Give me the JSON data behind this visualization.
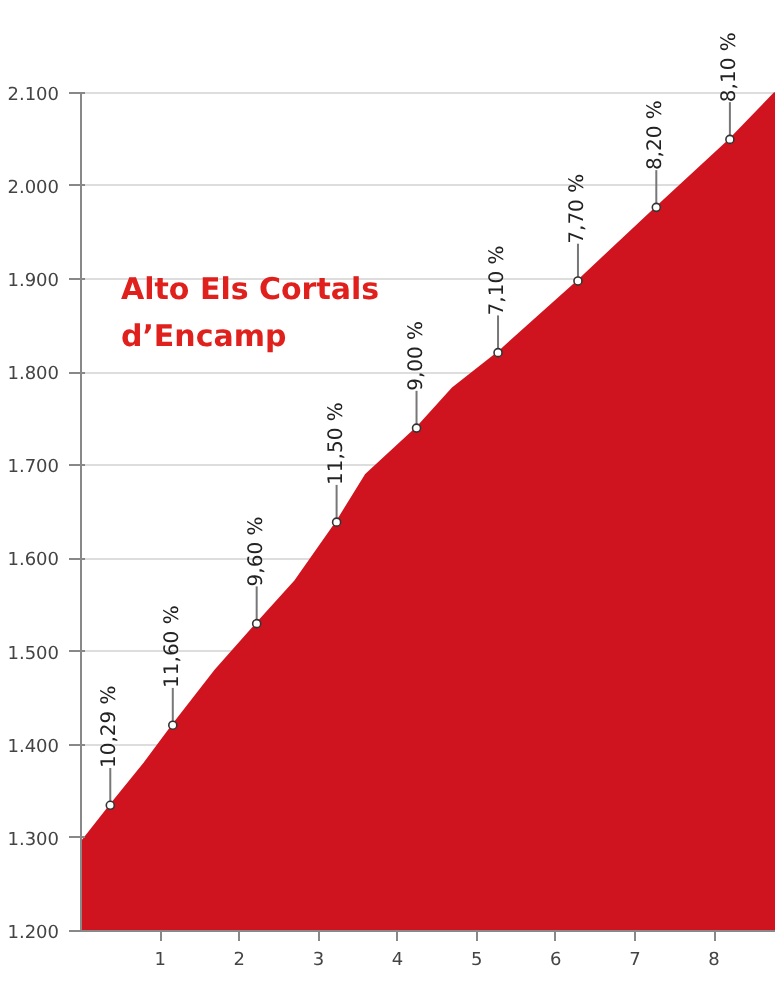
{
  "chart_data": {
    "type": "area",
    "title": "Alto Els Cortals d’Encamp",
    "x": [
      0,
      0.37,
      0.8,
      1.16,
      1.7,
      2.22,
      2.7,
      3.23,
      3.6,
      4.24,
      4.7,
      5.27,
      6.28,
      7.27,
      8.2,
      8.77
    ],
    "series": [
      {
        "color": "#d0141f",
        "values": [
          1295,
          1335,
          1380,
          1421,
          1480,
          1530,
          1575,
          1639,
          1690,
          1740,
          1783,
          1821,
          1898,
          1977,
          2050,
          2100
        ]
      },
      {
        "type": "scatter",
        "color": "#ffffff",
        "marker": "circle",
        "x": [
          0.37,
          1.16,
          2.22,
          3.23,
          4.24,
          5.27,
          6.28,
          7.27,
          8.2
        ],
        "values": [
          1335,
          1421,
          1530,
          1639,
          1740,
          1821,
          1898,
          1977,
          2050
        ]
      }
    ],
    "xlim": [
      0,
      8.77
    ],
    "ylim": [
      1200,
      2100
    ],
    "xticks": [
      1,
      2,
      3,
      4,
      5,
      6,
      7,
      8
    ],
    "yticks": [
      {
        "value": 1200,
        "label": "1.200"
      },
      {
        "value": 1300,
        "label": "1.300"
      },
      {
        "value": 1400,
        "label": "1.400"
      },
      {
        "value": 1500,
        "label": "1.500"
      },
      {
        "value": 1600,
        "label": "1.600"
      },
      {
        "value": 1700,
        "label": "1.700"
      },
      {
        "value": 1800,
        "label": "1.800"
      },
      {
        "value": 1900,
        "label": "1.900"
      },
      {
        "value": 2000,
        "label": "2.000"
      },
      {
        "value": 2100,
        "label": "2.100"
      }
    ],
    "grid": "y",
    "annotations": [
      {
        "text": "10,29 %",
        "x": 0.37,
        "y": 1335
      },
      {
        "text": "11,60 %",
        "x": 1.16,
        "y": 1421
      },
      {
        "text": "9,60 %",
        "x": 2.22,
        "y": 1530
      },
      {
        "text": "11,50 %",
        "x": 3.23,
        "y": 1639
      },
      {
        "text": "9,00 %",
        "x": 4.24,
        "y": 1740
      },
      {
        "text": "7,10 %",
        "x": 5.27,
        "y": 1821
      },
      {
        "text": "7,70 %",
        "x": 6.28,
        "y": 1898
      },
      {
        "text": "8,20 %",
        "x": 7.27,
        "y": 1977
      },
      {
        "text": "8,10 %",
        "x": 8.2,
        "y": 2050
      }
    ]
  }
}
